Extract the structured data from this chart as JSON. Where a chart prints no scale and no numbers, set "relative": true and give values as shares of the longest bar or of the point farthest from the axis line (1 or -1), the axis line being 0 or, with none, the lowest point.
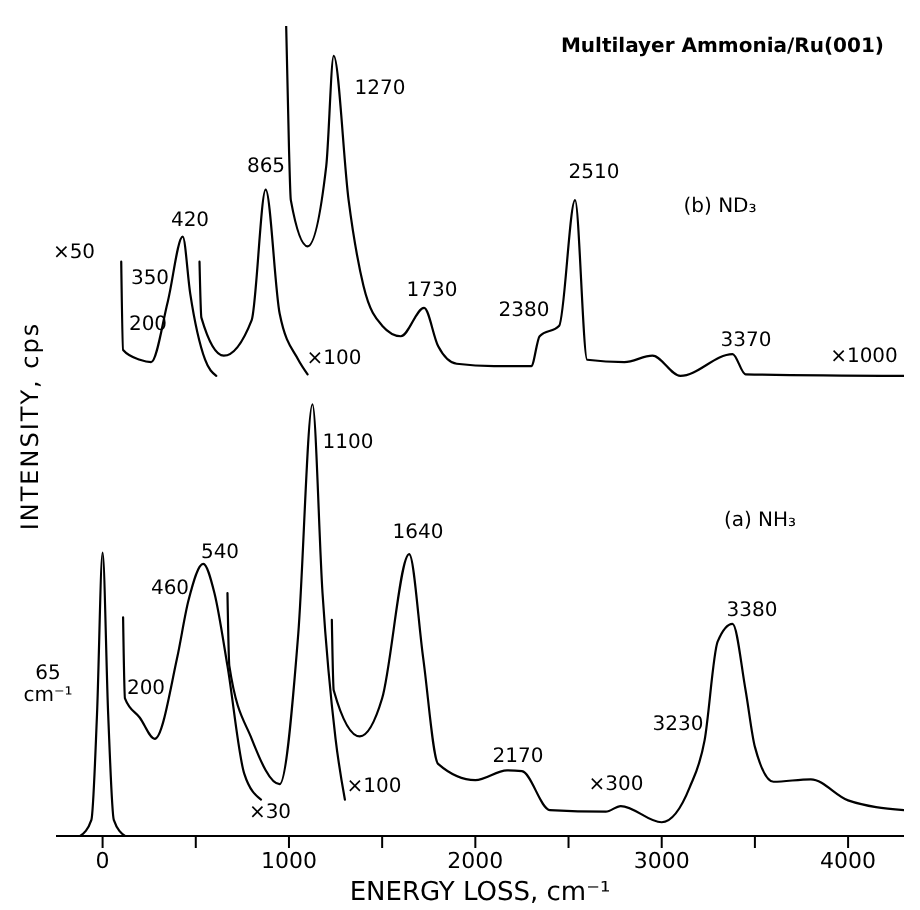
{
  "chart_data": {
    "type": "line",
    "title": "Multilayer Ammonia/Ru(001)",
    "xlabel": "ENERGY LOSS, cm⁻¹",
    "ylabel": "INTENSITY, cps",
    "relative": true,
    "legend": false,
    "xlim": [
      -250,
      4300
    ],
    "xticks": [
      0,
      {
        "value": 500,
        "label": null
      },
      1000,
      {
        "value": 1500,
        "label": null
      },
      2000,
      {
        "value": 2500,
        "label": null
      },
      3000,
      {
        "value": 3500,
        "label": null
      },
      4000
    ],
    "series": [
      {
        "color": "#000000",
        "x": [
          -120,
          -60,
          -30,
          0,
          30,
          60,
          120
        ],
        "values": [
          0,
          0.02,
          0.15,
          0.35,
          0.15,
          0.02,
          0
        ]
      },
      {
        "color": "#000000",
        "x": [
          110,
          120,
          200,
          280,
          400,
          460,
          540,
          600,
          670,
          760,
          850
        ],
        "values": [
          0.27,
          0.17,
          0.146,
          0.12,
          0.22,
          0.29,
          0.336,
          0.3,
          0.21,
          0.077,
          0.045
        ]
      },
      {
        "color": "#000000",
        "x": [
          670,
          680,
          800,
          950,
          1050,
          1126,
          1180,
          1250,
          1300
        ],
        "values": [
          0.3,
          0.21,
          0.12,
          0.064,
          0.25,
          0.533,
          0.3,
          0.12,
          0.045
        ]
      },
      {
        "color": "#000000",
        "x": [
          1230,
          1240,
          1380,
          1500,
          1645,
          1720,
          1800,
          2000,
          2170,
          2250,
          2400,
          2700,
          2780,
          3000,
          3150,
          3230,
          3300,
          3380,
          3450,
          3500,
          3600,
          3800,
          4000,
          4300
        ],
        "values": [
          0.267,
          0.18,
          0.123,
          0.17,
          0.348,
          0.22,
          0.089,
          0.069,
          0.081,
          0.08,
          0.032,
          0.03,
          0.037,
          0.017,
          0.06,
          0.118,
          0.24,
          0.262,
          0.18,
          0.11,
          0.067,
          0.07,
          0.044,
          0.032
        ]
      },
      {
        "color": "#000000",
        "x": [
          100,
          110,
          200,
          260,
          350,
          430,
          470,
          550,
          610
        ],
        "values": [
          0.709,
          0.6,
          0.588,
          0.585,
          0.66,
          0.74,
          0.67,
          0.588,
          0.568
        ]
      },
      {
        "color": "#000000",
        "x": [
          520,
          530,
          650,
          800,
          875,
          950,
          1050,
          1100
        ],
        "values": [
          0.709,
          0.64,
          0.593,
          0.637,
          0.798,
          0.645,
          0.588,
          0.57
        ]
      },
      {
        "color": "#000000",
        "x": [
          985,
          1000,
          1010,
          1100,
          1200,
          1240,
          1320,
          1400,
          1500,
          1600,
          1725,
          1800,
          1900,
          2100,
          2300,
          2345,
          2450,
          2535,
          2600,
          2800,
          2950,
          3100,
          3380,
          3450,
          4300
        ],
        "values": [
          1,
          0.85,
          0.785,
          0.728,
          0.827,
          0.963,
          0.785,
          0.679,
          0.63,
          0.617,
          0.652,
          0.605,
          0.583,
          0.58,
          0.58,
          0.617,
          0.63,
          0.785,
          0.588,
          0.585,
          0.593,
          0.568,
          0.595,
          0.57,
          0.568
        ]
      }
    ],
    "annotations": [
      "×50",
      "200",
      "350",
      "420",
      "865",
      "×100",
      "1270",
      "1730",
      "2380",
      "2510",
      "(b) ND₃",
      "3370",
      "×1000",
      "65 cm⁻¹",
      "200",
      "460",
      "540",
      "×30",
      "1100",
      "×100",
      "1640",
      "2170",
      "×300",
      "3230",
      "3380",
      "(a) NH₃"
    ]
  }
}
